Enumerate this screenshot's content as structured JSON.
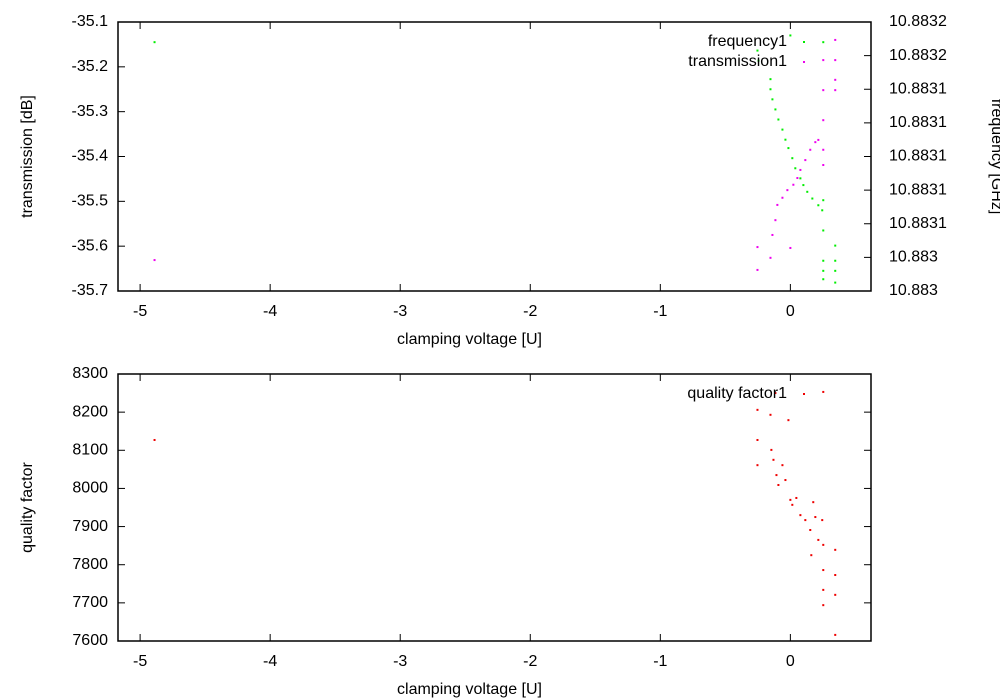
{
  "chart_data": [
    {
      "type": "scatter",
      "xlabel": "clamping voltage [U]",
      "ylabel": "transmission [dB]",
      "y2label": "frequency [GHz]",
      "xlim": [
        -5.17,
        0.62
      ],
      "xticks": [
        -5,
        -4,
        -3,
        -2,
        -1,
        0
      ],
      "ylim": [
        -35.7,
        -35.1
      ],
      "yticks": [
        -35.1,
        -35.2,
        -35.3,
        -35.4,
        -35.5,
        -35.6,
        -35.7
      ],
      "y2lim": [
        10.88302,
        10.88318
      ],
      "y2ticks": [
        {
          "value": 10.88318,
          "label": "10.8832"
        },
        {
          "value": 10.88316,
          "label": "10.8832"
        },
        {
          "value": 10.88314,
          "label": "10.8831"
        },
        {
          "value": 10.88312,
          "label": "10.8831"
        },
        {
          "value": 10.8831,
          "label": "10.8831"
        },
        {
          "value": 10.88308,
          "label": "10.8831"
        },
        {
          "value": 10.88306,
          "label": "10.8831"
        },
        {
          "value": 10.88304,
          "label": "10.883"
        },
        {
          "value": 10.88302,
          "label": "10.883"
        }
      ],
      "legend": "top-right",
      "series": [
        {
          "name": "frequency1",
          "color": "#00ee00",
          "axis": "y2",
          "x": [
            -4.889,
            0,
            -0.253,
            -0.245,
            -0.153,
            -0.153,
            -0.138,
            -0.115,
            -0.092,
            -0.061,
            -0.038,
            -0.015,
            0.015,
            0.038,
            0.077,
            0.1,
            0.13,
            0.169,
            0.215,
            0.245,
            0.253,
            0.253,
            0.253,
            0.253,
            0.253,
            0.253,
            0.345,
            0.345,
            0.345,
            0.345
          ],
          "values": [
            10.883168,
            10.883172,
            10.883163,
            10.883157,
            10.883146,
            10.88314,
            10.883134,
            10.883128,
            10.883122,
            10.883116,
            10.88311,
            10.883105,
            10.883099,
            10.883093,
            10.883087,
            10.883083,
            10.883079,
            10.883075,
            10.883071,
            10.883068,
            10.883168,
            10.883074,
            10.883056,
            10.883038,
            10.883032,
            10.883027,
            10.883047,
            10.883038,
            10.883032,
            10.883025
          ]
        },
        {
          "name": "transmission1",
          "color": "#ee00ee",
          "x": [
            -4.889,
            -0.253,
            -0.253,
            -0.153,
            -0.138,
            -0.115,
            -0.1,
            -0.061,
            -0.023,
            0,
            0.023,
            0.054,
            0.077,
            0.115,
            0.153,
            0.192,
            0.215,
            0.253,
            0.253,
            0.253,
            0.253,
            0.253,
            0.345,
            0.345,
            0.345,
            0.345
          ],
          "values": [
            -35.631,
            -35.602,
            -35.653,
            -35.626,
            -35.575,
            -35.542,
            -35.508,
            -35.492,
            -35.475,
            -35.604,
            -35.463,
            -35.448,
            -35.43,
            -35.408,
            -35.385,
            -35.368,
            -35.363,
            -35.185,
            -35.252,
            -35.319,
            -35.385,
            -35.419,
            -35.14,
            -35.185,
            -35.229,
            -35.252
          ]
        }
      ]
    },
    {
      "type": "scatter",
      "xlabel": "clamping voltage [U]",
      "ylabel": "quality factor",
      "xlim": [
        -5.17,
        0.62
      ],
      "xticks": [
        -5,
        -4,
        -3,
        -2,
        -1,
        0
      ],
      "ylim": [
        7600,
        8300
      ],
      "yticks": [
        8300,
        8200,
        8100,
        8000,
        7900,
        7800,
        7700,
        7600
      ],
      "legend": "top-right",
      "series": [
        {
          "name": "quality factor1",
          "color": "#ee0000",
          "x": [
            -4.889,
            -0.253,
            -0.253,
            -0.253,
            -0.153,
            -0.146,
            -0.13,
            -0.107,
            -0.092,
            -0.061,
            -0.038,
            -0.015,
            0,
            0.015,
            0.046,
            0.077,
            0.115,
            0.153,
            0.176,
            0.192,
            0.215,
            0.245,
            0.253,
            0.253,
            0.253,
            0.253,
            0.253,
            0.345,
            0.345,
            0.345,
            0.345,
            0.161,
            -0.115
          ],
          "values": [
            8127,
            8206,
            8127,
            8061,
            8193,
            8101,
            8075,
            8035,
            8009,
            8061,
            8022,
            8179,
            7970,
            7957,
            7975,
            7930,
            7917,
            7891,
            7964,
            7925,
            7865,
            7917,
            7852,
            7786,
            7734,
            7694,
            8253,
            7839,
            7773,
            7721,
            7616,
            7825,
            8250
          ]
        }
      ]
    }
  ]
}
